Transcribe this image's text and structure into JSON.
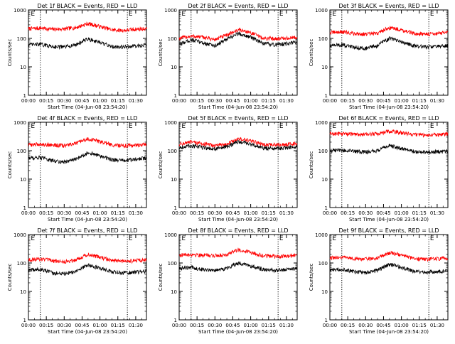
{
  "figure": {
    "background": "#ffffff"
  },
  "style": {
    "events_color": "#000000",
    "lld_color": "#ff0000",
    "axis_color": "#000000"
  },
  "chart_data": [
    {
      "type": "line",
      "detector": "1f",
      "title": "Det 1f BLACK = Events, RED = LLD",
      "xlabel": "Start Time (04-Jun-08 23:54:20)",
      "ylabel": "Counts/sec",
      "x_ticks": [
        "00:00",
        "00:15",
        "00:30",
        "00:45",
        "01:00",
        "01:15",
        "01:30"
      ],
      "y_ticks": [
        "1",
        "10",
        "100",
        "1000"
      ],
      "y_scale": "log",
      "ylim": [
        1,
        1000
      ],
      "xlim_minutes": [
        0,
        99
      ],
      "grid": false,
      "legend": "none",
      "markers": [
        {
          "label": "E",
          "x_minutes": 2
        },
        {
          "label": "E",
          "x_minutes": 84
        }
      ],
      "vertical_lines_minutes": [
        10,
        83
      ],
      "series": [
        {
          "name": "LLD",
          "color": "#ff0000",
          "x_minutes": [
            0,
            10,
            20,
            30,
            40,
            50,
            60,
            70,
            80,
            90,
            99
          ],
          "values": [
            220,
            230,
            210,
            215,
            240,
            330,
            260,
            200,
            190,
            210,
            220
          ]
        },
        {
          "name": "Events",
          "color": "#000000",
          "x_minutes": [
            0,
            10,
            20,
            30,
            40,
            50,
            60,
            70,
            80,
            90,
            99
          ],
          "values": [
            60,
            62,
            52,
            50,
            60,
            95,
            70,
            52,
            50,
            55,
            60
          ]
        }
      ]
    },
    {
      "type": "line",
      "detector": "2f",
      "title": "Det 2f BLACK = Events, RED = LLD",
      "xlabel": "Start Time (04-Jun-08 23:54:20)",
      "ylabel": "Counts/sec",
      "x_ticks": [
        "00:00",
        "00:15",
        "00:30",
        "00:45",
        "01:00",
        "01:15",
        "01:30"
      ],
      "y_ticks": [
        "1",
        "10",
        "100",
        "1000"
      ],
      "y_scale": "log",
      "ylim": [
        1,
        1000
      ],
      "xlim_minutes": [
        0,
        99
      ],
      "grid": false,
      "legend": "none",
      "markers": [
        {
          "label": "E",
          "x_minutes": 2
        },
        {
          "label": "E",
          "x_minutes": 84
        }
      ],
      "vertical_lines_minutes": [
        10,
        83
      ],
      "series": [
        {
          "name": "LLD",
          "color": "#ff0000",
          "x_minutes": [
            0,
            10,
            20,
            30,
            40,
            50,
            60,
            70,
            80,
            90,
            99
          ],
          "values": [
            100,
            120,
            110,
            90,
            130,
            200,
            160,
            100,
            100,
            100,
            110
          ]
        },
        {
          "name": "Events",
          "color": "#000000",
          "x_minutes": [
            0,
            10,
            20,
            30,
            40,
            50,
            60,
            70,
            80,
            90,
            99
          ],
          "values": [
            60,
            90,
            70,
            55,
            90,
            150,
            110,
            65,
            60,
            65,
            75
          ]
        }
      ]
    },
    {
      "type": "line",
      "detector": "3f",
      "title": "Det 3f BLACK = Events, RED = LLD",
      "xlabel": "Start Time (04-Jun-08 23:54:20)",
      "ylabel": "Counts/sec",
      "x_ticks": [
        "00:00",
        "00:15",
        "00:30",
        "00:45",
        "01:00",
        "01:15",
        "01:30"
      ],
      "y_ticks": [
        "1",
        "10",
        "100",
        "1000"
      ],
      "y_scale": "log",
      "ylim": [
        1,
        1000
      ],
      "xlim_minutes": [
        0,
        99
      ],
      "grid": false,
      "legend": "none",
      "markers": [
        {
          "label": "E",
          "x_minutes": 2
        },
        {
          "label": "E",
          "x_minutes": 84
        }
      ],
      "vertical_lines_minutes": [
        10,
        83
      ],
      "series": [
        {
          "name": "LLD",
          "color": "#ff0000",
          "x_minutes": [
            0,
            10,
            20,
            30,
            40,
            50,
            60,
            70,
            80,
            90,
            99
          ],
          "values": [
            160,
            170,
            150,
            140,
            150,
            240,
            200,
            150,
            140,
            150,
            160
          ]
        },
        {
          "name": "Events",
          "color": "#000000",
          "x_minutes": [
            0,
            10,
            20,
            30,
            40,
            50,
            60,
            70,
            80,
            90,
            99
          ],
          "values": [
            55,
            60,
            50,
            45,
            55,
            100,
            75,
            55,
            50,
            52,
            55
          ]
        }
      ]
    },
    {
      "type": "line",
      "detector": "4f",
      "title": "Det 4f BLACK = Events, RED = LLD",
      "xlabel": "Start Time (04-Jun-08 23:54:20)",
      "ylabel": "Counts/sec",
      "x_ticks": [
        "00:00",
        "00:15",
        "00:30",
        "00:45",
        "01:00",
        "01:15",
        "01:30"
      ],
      "y_ticks": [
        "1",
        "10",
        "100",
        "1000"
      ],
      "y_scale": "log",
      "ylim": [
        1,
        1000
      ],
      "xlim_minutes": [
        0,
        99
      ],
      "grid": false,
      "legend": "none",
      "markers": [
        {
          "label": "E",
          "x_minutes": 2
        },
        {
          "label": "E",
          "x_minutes": 84
        }
      ],
      "vertical_lines_minutes": [
        10,
        83
      ],
      "series": [
        {
          "name": "LLD",
          "color": "#ff0000",
          "x_minutes": [
            0,
            10,
            20,
            30,
            40,
            50,
            60,
            70,
            80,
            90,
            99
          ],
          "values": [
            160,
            170,
            160,
            150,
            180,
            260,
            210,
            160,
            150,
            155,
            170
          ]
        },
        {
          "name": "Events",
          "color": "#000000",
          "x_minutes": [
            0,
            10,
            20,
            30,
            40,
            50,
            60,
            70,
            80,
            90,
            99
          ],
          "values": [
            55,
            58,
            45,
            40,
            50,
            85,
            65,
            48,
            45,
            50,
            55
          ]
        }
      ]
    },
    {
      "type": "line",
      "detector": "5f",
      "title": "Det 5f BLACK = Events, RED = LLD",
      "xlabel": "Start Time (04-Jun-08 23:54:20)",
      "ylabel": "Counts/sec",
      "x_ticks": [
        "00:00",
        "00:15",
        "00:30",
        "00:45",
        "01:00",
        "01:15",
        "01:30"
      ],
      "y_ticks": [
        "1",
        "10",
        "100",
        "1000"
      ],
      "y_scale": "log",
      "ylim": [
        1,
        1000
      ],
      "xlim_minutes": [
        0,
        99
      ],
      "grid": false,
      "legend": "none",
      "markers": [
        {
          "label": "E",
          "x_minutes": 2
        },
        {
          "label": "E",
          "x_minutes": 84
        }
      ],
      "vertical_lines_minutes": [
        10,
        83
      ],
      "series": [
        {
          "name": "LLD",
          "color": "#ff0000",
          "x_minutes": [
            0,
            10,
            20,
            30,
            40,
            50,
            60,
            70,
            80,
            90,
            99
          ],
          "values": [
            170,
            200,
            175,
            150,
            170,
            260,
            220,
            165,
            160,
            165,
            180
          ]
        },
        {
          "name": "Events",
          "color": "#000000",
          "x_minutes": [
            0,
            10,
            20,
            30,
            40,
            50,
            60,
            70,
            80,
            90,
            99
          ],
          "values": [
            130,
            150,
            130,
            115,
            135,
            210,
            170,
            125,
            120,
            125,
            135
          ]
        }
      ]
    },
    {
      "type": "line",
      "detector": "6f",
      "title": "Det 6f BLACK = Events, RED = LLD",
      "xlabel": "Start Time (04-Jun-08 23:54:20)",
      "ylabel": "Counts/sec",
      "x_ticks": [
        "00:00",
        "00:15",
        "00:30",
        "00:45",
        "01:00",
        "01:15",
        "01:30"
      ],
      "y_ticks": [
        "1",
        "10",
        "100",
        "1000"
      ],
      "y_scale": "log",
      "ylim": [
        1,
        1000
      ],
      "xlim_minutes": [
        0,
        99
      ],
      "grid": false,
      "legend": "none",
      "markers": [
        {
          "label": "E",
          "x_minutes": 2
        },
        {
          "label": "E",
          "x_minutes": 84
        }
      ],
      "vertical_lines_minutes": [
        10,
        83
      ],
      "series": [
        {
          "name": "LLD",
          "color": "#ff0000",
          "x_minutes": [
            0,
            10,
            20,
            30,
            40,
            50,
            60,
            70,
            80,
            90,
            99
          ],
          "values": [
            390,
            400,
            380,
            370,
            400,
            480,
            430,
            370,
            360,
            370,
            380
          ]
        },
        {
          "name": "Events",
          "color": "#000000",
          "x_minutes": [
            0,
            10,
            20,
            30,
            40,
            50,
            60,
            70,
            80,
            90,
            99
          ],
          "values": [
            100,
            105,
            95,
            90,
            100,
            150,
            120,
            95,
            90,
            92,
            95
          ]
        }
      ]
    },
    {
      "type": "line",
      "detector": "7f",
      "title": "Det 7f BLACK = Events, RED = LLD",
      "xlabel": "Start Time (04-Jun-08 23:54:20)",
      "ylabel": "Counts/sec",
      "x_ticks": [
        "00:00",
        "00:15",
        "00:30",
        "00:45",
        "01:00",
        "01:15",
        "01:30"
      ],
      "y_ticks": [
        "1",
        "10",
        "100",
        "1000"
      ],
      "y_scale": "log",
      "ylim": [
        1,
        1000
      ],
      "xlim_minutes": [
        0,
        99
      ],
      "grid": false,
      "legend": "none",
      "markers": [
        {
          "label": "E",
          "x_minutes": 2
        },
        {
          "label": "E",
          "x_minutes": 84
        }
      ],
      "vertical_lines_minutes": [
        10,
        83
      ],
      "series": [
        {
          "name": "LLD",
          "color": "#ff0000",
          "x_minutes": [
            0,
            10,
            20,
            30,
            40,
            50,
            60,
            70,
            80,
            90,
            99
          ],
          "values": [
            130,
            140,
            120,
            110,
            130,
            200,
            160,
            120,
            115,
            120,
            130
          ]
        },
        {
          "name": "Events",
          "color": "#000000",
          "x_minutes": [
            0,
            10,
            20,
            30,
            40,
            50,
            60,
            70,
            80,
            90,
            99
          ],
          "values": [
            55,
            60,
            45,
            42,
            50,
            85,
            65,
            50,
            45,
            48,
            52
          ]
        }
      ]
    },
    {
      "type": "line",
      "detector": "8f",
      "title": "Det 8f BLACK = Events, RED = LLD",
      "xlabel": "Start Time (04-Jun-08 23:54:20)",
      "ylabel": "Counts/sec",
      "x_ticks": [
        "00:00",
        "00:15",
        "00:30",
        "00:45",
        "01:00",
        "01:15",
        "01:30"
      ],
      "y_ticks": [
        "1",
        "10",
        "100",
        "1000"
      ],
      "y_scale": "log",
      "ylim": [
        1,
        1000
      ],
      "xlim_minutes": [
        0,
        99
      ],
      "grid": false,
      "legend": "none",
      "markers": [
        {
          "label": "E",
          "x_minutes": 2
        },
        {
          "label": "E",
          "x_minutes": 84
        }
      ],
      "vertical_lines_minutes": [
        10,
        83
      ],
      "series": [
        {
          "name": "LLD",
          "color": "#ff0000",
          "x_minutes": [
            0,
            10,
            20,
            30,
            40,
            50,
            60,
            70,
            80,
            90,
            99
          ],
          "values": [
            190,
            200,
            190,
            180,
            200,
            290,
            240,
            180,
            170,
            175,
            185
          ]
        },
        {
          "name": "Events",
          "color": "#000000",
          "x_minutes": [
            0,
            10,
            20,
            30,
            40,
            50,
            60,
            70,
            80,
            90,
            99
          ],
          "values": [
            65,
            70,
            60,
            55,
            65,
            100,
            80,
            60,
            55,
            58,
            62
          ]
        }
      ]
    },
    {
      "type": "line",
      "detector": "9f",
      "title": "Det 9f BLACK = Events, RED = LLD",
      "xlabel": "Start Time (04-Jun-08 23:54:20)",
      "ylabel": "Counts/sec",
      "x_ticks": [
        "00:00",
        "00:15",
        "00:30",
        "00:45",
        "01:00",
        "01:15",
        "01:30"
      ],
      "y_ticks": [
        "1",
        "10",
        "100",
        "1000"
      ],
      "y_scale": "log",
      "ylim": [
        1,
        1000
      ],
      "xlim_minutes": [
        0,
        99
      ],
      "grid": false,
      "legend": "none",
      "markers": [
        {
          "label": "E",
          "x_minutes": 2
        },
        {
          "label": "E",
          "x_minutes": 84
        }
      ],
      "vertical_lines_minutes": [
        10,
        83
      ],
      "series": [
        {
          "name": "LLD",
          "color": "#ff0000",
          "x_minutes": [
            0,
            10,
            20,
            30,
            40,
            50,
            60,
            70,
            80,
            90,
            99
          ],
          "values": [
            150,
            160,
            145,
            135,
            150,
            230,
            190,
            140,
            135,
            140,
            150
          ]
        },
        {
          "name": "Events",
          "color": "#000000",
          "x_minutes": [
            0,
            10,
            20,
            30,
            40,
            50,
            60,
            70,
            80,
            90,
            99
          ],
          "values": [
            55,
            62,
            50,
            45,
            55,
            90,
            70,
            52,
            48,
            50,
            55
          ]
        }
      ]
    }
  ]
}
